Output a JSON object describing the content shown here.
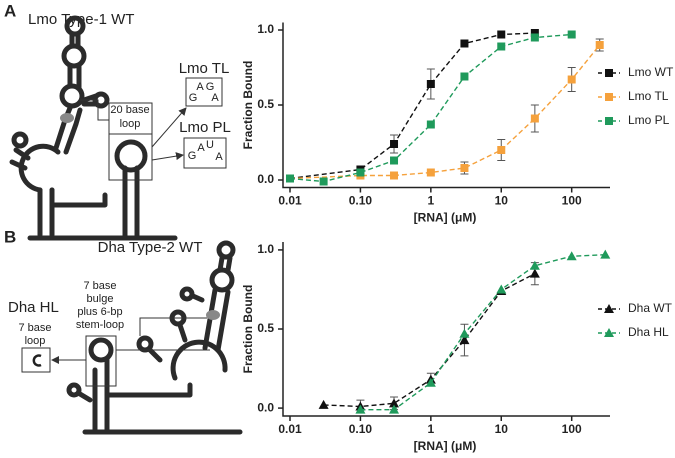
{
  "panels": {
    "a": {
      "label": "A",
      "title": "Lmo Type-1 WT",
      "loop_lines": [
        "20 base",
        "loop"
      ],
      "tl_name": "Lmo TL",
      "tl_letters": [
        "A",
        "G",
        "G",
        "A"
      ],
      "pl_name": "Lmo PL",
      "pl_letters": [
        "G",
        "A",
        "U",
        "A"
      ]
    },
    "b": {
      "label": "B",
      "title": "Dha Type-2 WT",
      "hl_name": "Dha HL",
      "loop_lines": [
        "7 base",
        "loop"
      ],
      "bulge_lines": [
        "7 base",
        "bulge",
        "plus 6-bp",
        "stem-loop"
      ]
    }
  },
  "chart_data": [
    {
      "type": "scatter",
      "y_label": "Fraction Bound",
      "x_label": "[RNA] (μM)",
      "log_x": true,
      "legend": "right",
      "marker": "square",
      "line_style": "dashed",
      "xlim": [
        0.01,
        350
      ],
      "ylim": [
        -0.05,
        1.05
      ],
      "xticks": [
        0.01,
        {
          "value": 0.1,
          "label": "0.10"
        },
        1,
        10,
        100
      ],
      "yticks": [
        {
          "value": 0,
          "label": "0.0"
        },
        0.5,
        {
          "value": 1,
          "label": "1.0"
        }
      ],
      "series": [
        {
          "name": "Lmo WT",
          "color": "#111111",
          "x": [
            0.01,
            0.1,
            0.3,
            1,
            3,
            10,
            30
          ],
          "values": [
            0.01,
            0.07,
            0.24,
            0.64,
            0.91,
            0.97,
            0.98
          ],
          "errors": [
            null,
            null,
            0.06,
            0.1,
            null,
            null,
            null
          ]
        },
        {
          "name": "Lmo TL",
          "color": "#f5a13c",
          "x": [
            0.01,
            0.1,
            0.3,
            1,
            3,
            10,
            30,
            100,
            250
          ],
          "values": [
            0.01,
            0.03,
            0.03,
            0.05,
            0.08,
            0.2,
            0.41,
            0.67,
            0.9
          ],
          "errors": [
            null,
            null,
            null,
            null,
            0.04,
            0.07,
            0.09,
            0.08,
            0.04
          ]
        },
        {
          "name": "Lmo PL",
          "color": "#1f9a5b",
          "x": [
            0.01,
            0.03,
            0.1,
            0.3,
            1,
            3,
            10,
            30,
            100
          ],
          "values": [
            0.01,
            -0.01,
            0.05,
            0.13,
            0.37,
            0.69,
            0.89,
            0.95,
            0.97
          ],
          "errors": [
            null,
            null,
            null,
            null,
            null,
            null,
            null,
            null,
            null
          ]
        }
      ]
    },
    {
      "type": "scatter",
      "y_label": "Fraction Bound",
      "x_label": "[RNA] (μM)",
      "log_x": true,
      "legend": "right",
      "marker": "triangle",
      "line_style": "dashed",
      "xlim": [
        0.01,
        350
      ],
      "ylim": [
        -0.05,
        1.05
      ],
      "xticks": [
        0.01,
        {
          "value": 0.1,
          "label": "0.10"
        },
        1,
        10,
        100
      ],
      "yticks": [
        {
          "value": 0,
          "label": "0.0"
        },
        0.5,
        {
          "value": 1,
          "label": "1.0"
        }
      ],
      "series": [
        {
          "name": "Dha WT",
          "color": "#111111",
          "x": [
            0.03,
            0.1,
            0.3,
            1,
            3,
            10,
            30
          ],
          "values": [
            0.02,
            0.01,
            0.03,
            0.18,
            0.43,
            0.74,
            0.85
          ],
          "errors": [
            null,
            0.04,
            0.04,
            0.04,
            0.1,
            null,
            0.07
          ]
        },
        {
          "name": "Dha HL",
          "color": "#1f9a5b",
          "x": [
            0.1,
            0.3,
            1,
            3,
            10,
            30,
            100,
            300
          ],
          "values": [
            -0.01,
            -0.01,
            0.16,
            0.47,
            0.75,
            0.9,
            0.96,
            0.97
          ],
          "errors": [
            null,
            null,
            null,
            null,
            null,
            null,
            null,
            null
          ]
        }
      ]
    }
  ]
}
